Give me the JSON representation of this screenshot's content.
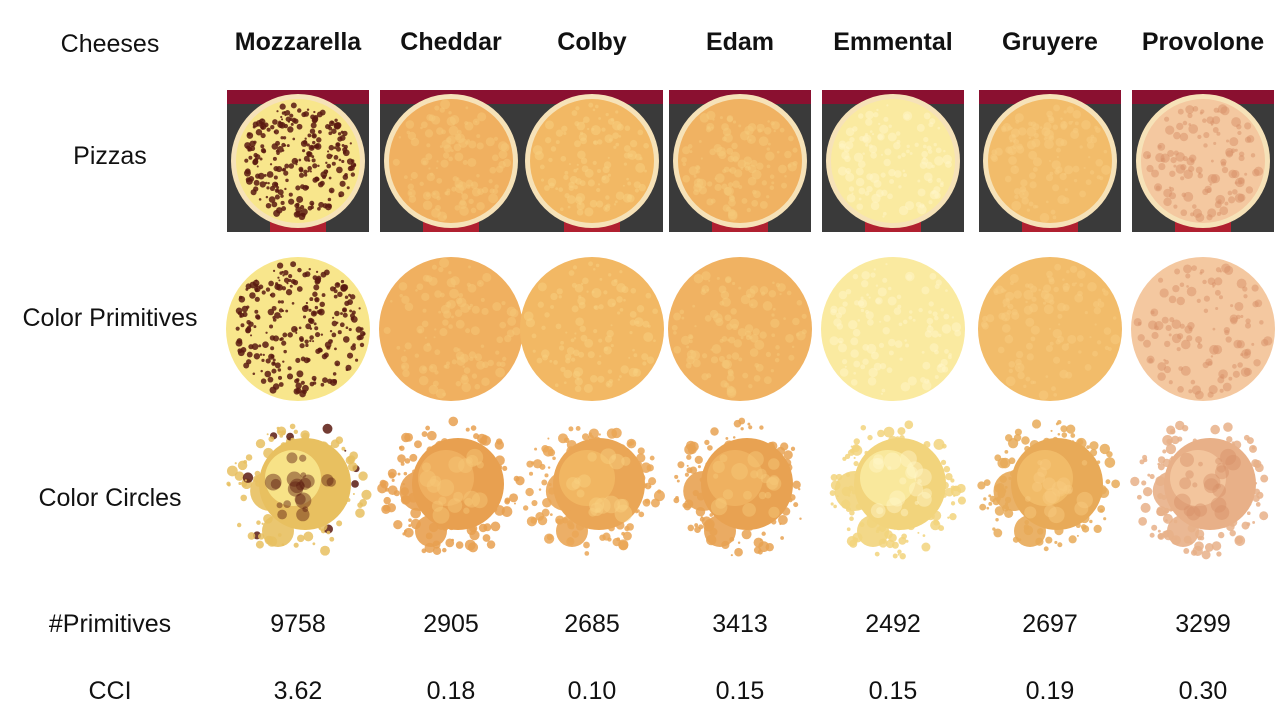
{
  "row_labels": {
    "cheeses": "Cheeses",
    "pizzas": "Pizzas",
    "color_primitives": "Color Primitives",
    "color_circles": "Color  Circles",
    "num_primitives": "#Primitives",
    "cci": "CCI"
  },
  "cheeses": [
    {
      "name": "Mozzarella",
      "primitives": "9758",
      "cci": "3.62",
      "base": "#f8e68c",
      "edge": "#e8c060",
      "spots": "#5a1a10"
    },
    {
      "name": "Cheddar",
      "primitives": "2905",
      "cci": "0.18",
      "base": "#f0b060",
      "edge": "#e8a050",
      "spots": "#f6c878"
    },
    {
      "name": "Colby",
      "primitives": "2685",
      "cci": "0.10",
      "base": "#f2b864",
      "edge": "#eaa656",
      "spots": "#f8d080"
    },
    {
      "name": "Edam",
      "primitives": "3413",
      "cci": "0.15",
      "base": "#f0b262",
      "edge": "#e8a252",
      "spots": "#f6ca7a"
    },
    {
      "name": "Emmental",
      "primitives": "2492",
      "cci": "0.15",
      "base": "#faeaa0",
      "edge": "#f2d47c",
      "spots": "#fff6c8"
    },
    {
      "name": "Gruyere",
      "primitives": "2697",
      "cci": "0.19",
      "base": "#f2bc6a",
      "edge": "#e8aa58",
      "spots": "#f8cc80"
    },
    {
      "name": "Provolone",
      "primitives": "3299",
      "cci": "0.30",
      "base": "#f4c8a0",
      "edge": "#e8b088",
      "spots": "#d89068"
    }
  ]
}
